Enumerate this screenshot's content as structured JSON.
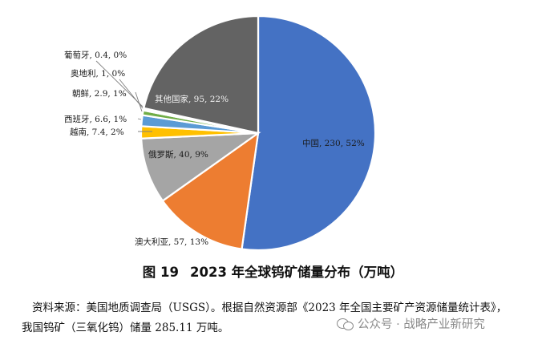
{
  "chart_data": {
    "type": "pie",
    "title": "2023 年全球钨矿储量分布（万吨）",
    "figure_number": "图 19",
    "slices": [
      {
        "name": "中国",
        "value": 230,
        "percent": "52%",
        "color": "#4472c4"
      },
      {
        "name": "澳大利亚",
        "value": 57,
        "percent": "13%",
        "color": "#ed7d31"
      },
      {
        "name": "俄罗斯",
        "value": 40,
        "percent": "9%",
        "color": "#a5a5a5"
      },
      {
        "name": "越南",
        "value": 7.4,
        "percent": "2%",
        "color": "#ffc000"
      },
      {
        "name": "西班牙",
        "value": 6.6,
        "percent": "1%",
        "color": "#5b9bd5"
      },
      {
        "name": "朝鲜",
        "value": 2.9,
        "percent": "1%",
        "color": "#70ad47"
      },
      {
        "name": "奥地利",
        "value": 1,
        "percent": "0%",
        "color": "#264478"
      },
      {
        "name": "葡萄牙",
        "value": 0.4,
        "percent": "0%",
        "color": "#9e480e"
      },
      {
        "name": "其他国家",
        "value": 95,
        "percent": "22%",
        "color": "#636363"
      }
    ],
    "labels": [
      "中国, 230, 52%",
      "澳大利亚, 57, 13%",
      "俄罗斯, 40, 9%",
      "越南, 7.4, 2%",
      "西班牙, 6.6, 1%",
      "朝鲜, 2.9, 1%",
      "奥地利, 1, 0%",
      "葡萄牙, 0.4, 0%",
      "其他国家, 95, 22%"
    ]
  },
  "caption": {
    "number": "图 19",
    "title": "2023 年全球钨矿储量分布（万吨）"
  },
  "source_note": {
    "line1": "资料来源：美国地质调查局（USGS）。根据自然资源部《2023 年全国主要矿产资源储量统计表》，",
    "line2": "我国钨矿（三氧化钨）储量 285.11 万吨。"
  },
  "watermark": {
    "text": "公众号 · 战略产业新研究",
    "icon": "wechat-icon"
  }
}
